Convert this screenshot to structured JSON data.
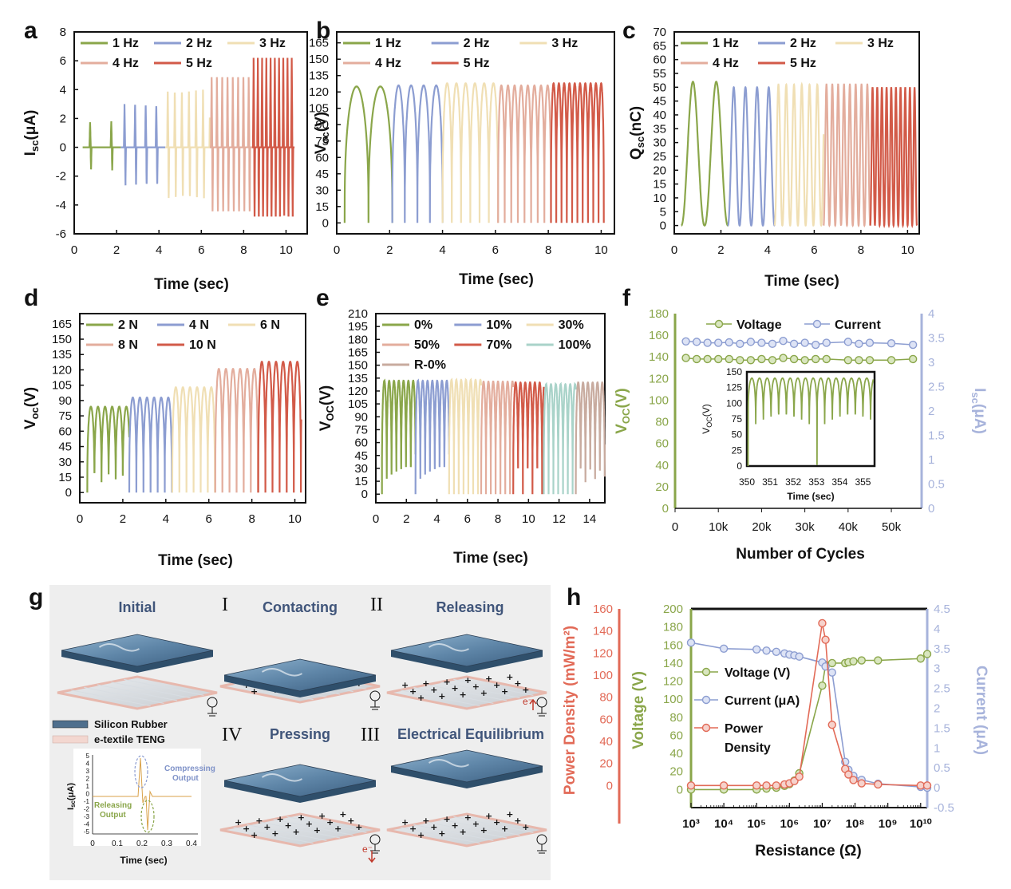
{
  "chart_data": [
    {
      "panel": "a",
      "type": "line",
      "xlabel": "Time (sec)",
      "ylabel": "I_sc(μA)",
      "xlim": [
        0,
        11
      ],
      "ylim": [
        -6,
        8
      ],
      "xticks": [
        0,
        2,
        4,
        6,
        8,
        10
      ],
      "yticks": [
        -6,
        -4,
        -2,
        0,
        2,
        4,
        6,
        8
      ],
      "legend": "top, 3 columns",
      "series": [
        {
          "name": "1 Hz",
          "color": "#8aa64a",
          "t_start": 0.4,
          "t_end": 2.2,
          "period": 1.0,
          "peak": 1.8,
          "trough": -1.6
        },
        {
          "name": "2 Hz",
          "color": "#8c9dd1",
          "t_start": 2.2,
          "t_end": 4.3,
          "period": 0.5,
          "peak": 3.0,
          "trough": -2.7
        },
        {
          "name": "3 Hz",
          "color": "#f0dfb4",
          "t_start": 4.3,
          "t_end": 6.4,
          "period": 0.333,
          "peak": 4.0,
          "trough": -3.6
        },
        {
          "name": "4 Hz",
          "color": "#e3ad9d",
          "t_start": 6.4,
          "t_end": 8.4,
          "period": 0.25,
          "peak": 5.0,
          "trough": -4.6
        },
        {
          "name": "5 Hz",
          "color": "#d25a48",
          "t_start": 8.4,
          "t_end": 10.4,
          "period": 0.2,
          "peak": 6.2,
          "trough": -5.1
        }
      ]
    },
    {
      "panel": "b",
      "type": "line",
      "xlabel": "Time (sec)",
      "ylabel": "V_oc(V)",
      "xlim": [
        0,
        10.5
      ],
      "ylim": [
        -10,
        175
      ],
      "xticks": [
        0,
        2,
        4,
        6,
        8,
        10
      ],
      "yticks": [
        0,
        15,
        30,
        45,
        60,
        75,
        90,
        105,
        120,
        135,
        150,
        165
      ],
      "legend": "top, 3 columns",
      "series": [
        {
          "name": "1 Hz",
          "color": "#8aa64a",
          "t_start": 0.3,
          "t_end": 2.1,
          "period": 0.9,
          "peak": 125
        },
        {
          "name": "2 Hz",
          "color": "#8c9dd1",
          "t_start": 2.1,
          "t_end": 4.0,
          "period": 0.475,
          "peak": 126
        },
        {
          "name": "3 Hz",
          "color": "#f0dfb4",
          "t_start": 4.0,
          "t_end": 6.1,
          "period": 0.35,
          "peak": 128
        },
        {
          "name": "4 Hz",
          "color": "#e3ad9d",
          "t_start": 6.1,
          "t_end": 8.1,
          "period": 0.25,
          "peak": 126
        },
        {
          "name": "5 Hz",
          "color": "#d25a48",
          "t_start": 8.1,
          "t_end": 10.1,
          "period": 0.2,
          "peak": 128
        }
      ]
    },
    {
      "panel": "c",
      "type": "line",
      "xlabel": "Time (sec)",
      "ylabel": "Q_sc(nC)",
      "xlim": [
        0,
        10.5
      ],
      "ylim": [
        -3,
        70
      ],
      "xticks": [
        0,
        2,
        4,
        6,
        8,
        10
      ],
      "yticks": [
        0,
        5,
        10,
        15,
        20,
        25,
        30,
        35,
        40,
        45,
        50,
        55,
        60,
        65,
        70
      ],
      "legend": "top, 3 columns",
      "series": [
        {
          "name": "1 Hz",
          "color": "#8aa64a",
          "t_start": 0.3,
          "t_end": 2.3,
          "period": 1.0,
          "peak": 52
        },
        {
          "name": "2 Hz",
          "color": "#8c9dd1",
          "t_start": 2.3,
          "t_end": 4.3,
          "period": 0.5,
          "peak": 50
        },
        {
          "name": "3 Hz",
          "color": "#f0dfb4",
          "t_start": 4.3,
          "t_end": 6.4,
          "period": 0.333,
          "peak": 51
        },
        {
          "name": "4 Hz",
          "color": "#e3ad9d",
          "t_start": 6.4,
          "t_end": 8.4,
          "period": 0.25,
          "peak": 51
        },
        {
          "name": "5 Hz",
          "color": "#d25a48",
          "t_start": 8.4,
          "t_end": 10.4,
          "period": 0.2,
          "peak": 50
        }
      ]
    },
    {
      "panel": "d",
      "type": "line",
      "xlabel": "Time (sec)",
      "ylabel": "V_oc(V)",
      "xlim": [
        0,
        10.5
      ],
      "ylim": [
        -10,
        175
      ],
      "xticks": [
        0,
        2,
        4,
        6,
        8,
        10
      ],
      "yticks": [
        0,
        15,
        30,
        45,
        60,
        75,
        90,
        105,
        120,
        135,
        150,
        165
      ],
      "legend": "top, 3 columns",
      "series": [
        {
          "name": "2 N",
          "color": "#8aa64a",
          "t_start": 0.35,
          "t_end": 2.3,
          "period": 0.33,
          "peak": 84
        },
        {
          "name": "4 N",
          "color": "#8c9dd1",
          "t_start": 2.3,
          "t_end": 4.3,
          "period": 0.33,
          "peak": 93
        },
        {
          "name": "6 N",
          "color": "#f0dfb4",
          "t_start": 4.3,
          "t_end": 6.3,
          "period": 0.33,
          "peak": 103
        },
        {
          "name": "8 N",
          "color": "#e3ad9d",
          "t_start": 6.3,
          "t_end": 8.3,
          "period": 0.33,
          "peak": 121
        },
        {
          "name": "10 N",
          "color": "#d25a48",
          "t_start": 8.3,
          "t_end": 10.3,
          "period": 0.33,
          "peak": 128
        }
      ]
    },
    {
      "panel": "e",
      "type": "line",
      "xlabel": "Time (sec)",
      "ylabel": "V_OC(V)",
      "xlim": [
        0,
        15
      ],
      "ylim": [
        -10,
        210
      ],
      "xticks": [
        0,
        2,
        4,
        6,
        8,
        10,
        12,
        14
      ],
      "yticks": [
        0,
        15,
        30,
        45,
        60,
        75,
        90,
        105,
        120,
        135,
        150,
        165,
        180,
        195,
        210
      ],
      "legend": "top, 3 columns",
      "series": [
        {
          "name": "0%",
          "color": "#8aa64a",
          "t_start": 0.4,
          "t_end": 2.6,
          "period": 0.315,
          "peak": 132
        },
        {
          "name": "10%",
          "color": "#8c9dd1",
          "t_start": 2.6,
          "t_end": 4.8,
          "period": 0.315,
          "peak": 132
        },
        {
          "name": "30%",
          "color": "#f0dfb4",
          "t_start": 4.8,
          "t_end": 6.9,
          "period": 0.315,
          "peak": 133
        },
        {
          "name": "50%",
          "color": "#e3ad9d",
          "t_start": 6.9,
          "t_end": 9.0,
          "period": 0.315,
          "peak": 131
        },
        {
          "name": "70%",
          "color": "#d25a48",
          "t_start": 9.0,
          "t_end": 11.0,
          "period": 0.315,
          "peak": 130
        },
        {
          "name": "100%",
          "color": "#a9d3c9",
          "t_start": 11.0,
          "t_end": 13.1,
          "period": 0.315,
          "peak": 128
        },
        {
          "name": "R-0%",
          "color": "#c8ab9f",
          "t_start": 13.1,
          "t_end": 15.0,
          "period": 0.315,
          "peak": 130
        }
      ]
    },
    {
      "panel": "f",
      "type": "scatter",
      "xlabel": "Number of Cycles",
      "ylabel_left": "V_OC(V)",
      "ylabel_right": "I_sc(μA)",
      "xlim": [
        0,
        57000
      ],
      "ylim_left": [
        0,
        180
      ],
      "ylim_right": [
        0,
        4
      ],
      "xticks": [
        0,
        10000,
        20000,
        30000,
        40000,
        50000
      ],
      "xticklabels": [
        "0",
        "10k",
        "20k",
        "30k",
        "40k",
        "50k"
      ],
      "yticks_left": [
        0,
        20,
        40,
        60,
        80,
        100,
        120,
        140,
        160,
        180
      ],
      "yticks_right": [
        0,
        0.5,
        1,
        1.5,
        2,
        2.5,
        3,
        3.5,
        4
      ],
      "legend": "top",
      "x": [
        2500,
        5000,
        7500,
        10000,
        12500,
        15000,
        17500,
        20000,
        22500,
        25000,
        27500,
        30000,
        32500,
        35000,
        40000,
        42500,
        45000,
        50000,
        55000
      ],
      "series": [
        {
          "name": "Voltage",
          "axis": "left",
          "color": "#8aa64a",
          "values": [
            139,
            138,
            138,
            138,
            138,
            137,
            137,
            138,
            137,
            139,
            138,
            137,
            138,
            138,
            137,
            137,
            137,
            137,
            138
          ]
        },
        {
          "name": "Current",
          "axis": "right",
          "color": "#8c9dd1",
          "values": [
            3.43,
            3.42,
            3.4,
            3.4,
            3.41,
            3.38,
            3.42,
            3.4,
            3.38,
            3.44,
            3.38,
            3.4,
            3.36,
            3.4,
            3.42,
            3.38,
            3.4,
            3.39,
            3.36
          ]
        }
      ],
      "inset": {
        "xlabel": "Time (sec)",
        "ylabel": "V_OC(V)",
        "xlim": [
          350,
          355.5
        ],
        "ylim": [
          0,
          150
        ],
        "xticks": [
          350,
          351,
          352,
          353,
          354,
          355
        ],
        "yticks": [
          0,
          25,
          50,
          75,
          100,
          125,
          150
        ],
        "color": "#8aa64a",
        "peak": 140,
        "period": 0.33
      }
    },
    {
      "panel": "h",
      "type": "scatter",
      "xlabel": "Resistance (Ω)",
      "xscale": "log",
      "ylabel_left_outer": "Power Density (mW/m²)",
      "ylabel_left": "Voltage (V)",
      "ylabel_right": "Current (μA)",
      "xlim_log10": [
        3,
        10.2
      ],
      "xticklabels": [
        "10³",
        "10⁴",
        "10⁵",
        "10⁶",
        "10⁷",
        "10⁸",
        "10⁹",
        "10¹⁰"
      ],
      "ylim_voltage": [
        -20,
        200
      ],
      "yticks_voltage": [
        0,
        20,
        40,
        60,
        80,
        100,
        120,
        140,
        160,
        180,
        200
      ],
      "ylim_power": [
        -20,
        160
      ],
      "yticks_power": [
        0,
        20,
        40,
        60,
        80,
        100,
        120,
        140,
        160
      ],
      "ylim_current": [
        -0.5,
        4.5
      ],
      "yticks_current": [
        -0.5,
        0,
        0.5,
        1,
        1.5,
        2,
        2.5,
        3,
        3.5,
        4,
        4.5
      ],
      "log10_x": [
        3,
        4,
        5,
        5.3,
        5.6,
        5.85,
        6,
        6.15,
        6.3,
        7,
        7.1,
        7.3,
        7.7,
        7.8,
        7.95,
        8.2,
        8.7,
        10.0,
        10.2
      ],
      "series": [
        {
          "name": "Voltage (V)",
          "axis": "voltage",
          "color": "#8aa64a",
          "values": [
            0,
            0,
            0,
            1,
            2,
            4,
            6,
            10,
            18,
            115,
            138,
            140,
            140,
            141,
            142,
            143,
            143,
            145,
            150
          ]
        },
        {
          "name": "Current (μA)",
          "axis": "current",
          "color": "#8c9dd1",
          "values": [
            3.65,
            3.5,
            3.48,
            3.45,
            3.42,
            3.38,
            3.35,
            3.33,
            3.3,
            3.15,
            3.05,
            2.9,
            0.65,
            0.45,
            0.3,
            0.2,
            0.1,
            0.02,
            0.0
          ]
        },
        {
          "name": "Power Density",
          "axis": "power",
          "color": "#e26a57",
          "values": [
            0,
            0,
            0,
            0,
            0,
            1,
            2,
            4,
            8,
            147,
            132,
            55,
            15,
            10,
            5,
            2,
            1,
            0,
            0
          ]
        }
      ]
    }
  ],
  "panel_labels": {
    "a": "a",
    "b": "b",
    "c": "c",
    "d": "d",
    "e": "e",
    "f": "f",
    "g": "g",
    "h": "h"
  },
  "schematic_g": {
    "stages": {
      "initial": "Initial",
      "contacting": "Contacting",
      "releasing": "Releasing",
      "pressing": "Pressing",
      "equilibrium": "Electrical Equilibrium"
    },
    "roman": {
      "i": "I",
      "ii": "II",
      "iii": "III",
      "iv": "IV"
    },
    "legend": {
      "silicon": "Silicon Rubber",
      "etextile": "e-textile TENG"
    },
    "electron": "e⁻",
    "inset": {
      "xlabel": "Time (sec)",
      "ylabel": "I_sc(μA)",
      "xticks": [
        "0",
        "0.1",
        "0.2",
        "0.3",
        "0.4"
      ],
      "yticks": [
        "5",
        "4",
        "3",
        "2",
        "1",
        "0",
        "-1",
        "-2",
        "-3",
        "-4",
        "-5"
      ],
      "compress_label": "Compressing Output",
      "release_label": "Releasing Output"
    }
  },
  "colors": {
    "green": "#8aa64a",
    "blue": "#8c9dd1",
    "cream": "#f0dfb4",
    "pink": "#e3ad9d",
    "red": "#d25a48",
    "teal": "#a9d3c9",
    "taupe": "#c8ab9f",
    "power_red": "#e26a57"
  }
}
